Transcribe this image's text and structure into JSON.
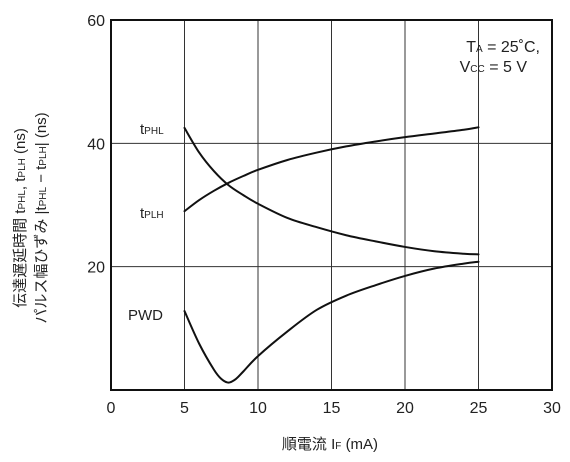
{
  "chart_data": {
    "type": "line",
    "xlabel": {
      "main": "順電流",
      "var": "I",
      "sub": "F",
      "unit": "(mA)"
    },
    "ylabel": {
      "line1_jp": "伝達遅延時間",
      "line1_t1": "t",
      "line1_s1": "PHL",
      "line1_sep": ", ",
      "line1_t2": "t",
      "line1_s2": "PLH",
      "line1_unit": " (ns)",
      "line2_jp": "パルス幅ひずみ",
      "line2_open": "|t",
      "line2_s1": "PHL",
      "line2_minus": " − t",
      "line2_s2": "PLH",
      "line2_close": "| (ns)"
    },
    "xlim": [
      0,
      30
    ],
    "ylim": [
      0,
      60
    ],
    "plot_xlim": [
      0,
      30
    ],
    "xticks": [
      "0",
      "5",
      "10",
      "15",
      "20",
      "25",
      "30"
    ],
    "yticks": [
      "20",
      "40",
      "60"
    ],
    "grid": true,
    "annotation": {
      "line1_t": "T",
      "line1_s": "A",
      "line1_rest": " = 25˚C,",
      "line2_t": "V",
      "line2_s": "CC",
      "line2_rest": " = 5 V"
    },
    "series": [
      {
        "name": "tPHL",
        "label_t": "t",
        "label_s": "PHL",
        "x": [
          5,
          6,
          7,
          8,
          9,
          10,
          12,
          14,
          16,
          18,
          20,
          22,
          24,
          25
        ],
        "y": [
          42.5,
          38.5,
          35.5,
          33.2,
          31.6,
          30.2,
          27.9,
          26.4,
          25.1,
          24.1,
          23.2,
          22.5,
          22.1,
          22.0
        ]
      },
      {
        "name": "tPLH",
        "label_t": "t",
        "label_s": "PLH",
        "x": [
          5,
          6,
          7,
          8,
          9,
          10,
          12,
          14,
          16,
          18,
          20,
          22,
          24,
          25
        ],
        "y": [
          29.0,
          30.8,
          32.3,
          33.6,
          34.7,
          35.7,
          37.3,
          38.5,
          39.5,
          40.3,
          41.0,
          41.6,
          42.2,
          42.6
        ]
      },
      {
        "name": "PWD",
        "label": "PWD",
        "x": [
          5,
          6,
          7,
          7.5,
          8,
          8.5,
          9,
          10,
          12,
          14,
          16,
          18,
          20,
          22,
          24,
          25
        ],
        "y": [
          12.8,
          7.5,
          3.3,
          1.8,
          1.2,
          1.8,
          3.0,
          5.5,
          9.5,
          13.0,
          15.3,
          17.0,
          18.5,
          19.7,
          20.5,
          20.8
        ]
      }
    ]
  }
}
